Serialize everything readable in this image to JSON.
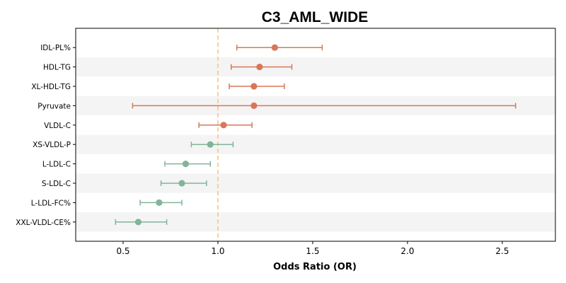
{
  "chart_data": {
    "type": "forest",
    "title": "C3_AML_WIDE",
    "xlabel": "Odds Ratio (OR)",
    "ylabel": "",
    "xlim": [
      0.25,
      2.78
    ],
    "xticks": [
      "0.5",
      "1.0",
      "1.5",
      "2.0",
      "2.5"
    ],
    "reference_line": 1.0,
    "grid": false,
    "row_banding": true,
    "colors": {
      "risk": "#d9765a",
      "protective": "#82b49a",
      "reference": "#f5c77e",
      "band": "#f4f4f4"
    },
    "categories": [
      "IDL-PL%",
      "HDL-TG",
      "XL-HDL-TG",
      "Pyruvate",
      "VLDL-C",
      "XS-VLDL-P",
      "L-LDL-C",
      "S-LDL-C",
      "L-LDL-FC%",
      "XXL-VLDL-CE%"
    ],
    "or": [
      1.3,
      1.22,
      1.19,
      1.19,
      1.03,
      0.96,
      0.83,
      0.81,
      0.69,
      0.58
    ],
    "ci_low": [
      1.1,
      1.07,
      1.06,
      0.55,
      0.9,
      0.86,
      0.72,
      0.7,
      0.59,
      0.46
    ],
    "ci_high": [
      1.55,
      1.39,
      1.35,
      2.57,
      1.18,
      1.08,
      0.96,
      0.94,
      0.81,
      0.73
    ]
  }
}
